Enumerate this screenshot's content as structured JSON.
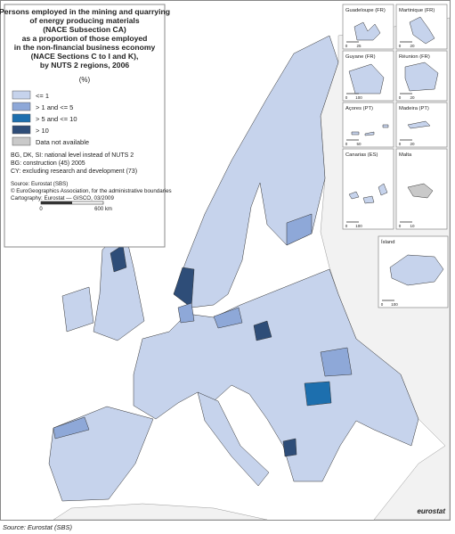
{
  "title_lines": [
    "Persons employed in the mining and quarrying",
    "of energy producing materials",
    "(NACE Subsection CA)",
    "as a proportion of those employed",
    "in the non-financial business economy",
    "(NACE Sections C to I and K),",
    "by NUTS 2 regions, 2006"
  ],
  "unit": "(%)",
  "legend": [
    {
      "label": "<= 1",
      "color": "#c6d3ec"
    },
    {
      "label": "> 1 and <= 5",
      "color": "#8ea8d8"
    },
    {
      "label": "> 5 and <= 10",
      "color": "#1d6fae"
    },
    {
      "label": "> 10",
      "color": "#2e4d78"
    },
    {
      "label": "Data not available",
      "color": "#c9c9c9"
    }
  ],
  "notes": [
    "BG, DK, SI: national level instead of NUTS 2",
    "BG: construction (45) 2005",
    "CY: excluding research and development (73)"
  ],
  "source_lines": [
    "Source: Eurostat (SBS)",
    "© EuroGeographics Association, for the administrative boundaries",
    "Cartography: Eurostat — GISCO, 03/2009"
  ],
  "scale": {
    "start": "0",
    "end": "600 km"
  },
  "insets": [
    {
      "name": "Guadeloupe (FR)",
      "scale": [
        "0",
        "25"
      ]
    },
    {
      "name": "Martinique (FR)",
      "scale": [
        "0",
        "20"
      ]
    },
    {
      "name": "Guyane (FR)",
      "scale": [
        "0",
        "100"
      ]
    },
    {
      "name": "Réunion (FR)",
      "scale": [
        "0",
        "20"
      ]
    },
    {
      "name": "Açores (PT)",
      "scale": [
        "0",
        "50"
      ]
    },
    {
      "name": "Madeira (PT)",
      "scale": [
        "0",
        "20"
      ]
    },
    {
      "name": "Canarias (ES)",
      "scale": [
        "0",
        "100"
      ]
    },
    {
      "name": "Malta",
      "scale": [
        "0",
        "10"
      ]
    },
    {
      "name": "Ísland",
      "scale": [
        "0",
        "100"
      ]
    }
  ],
  "logo": "eurostat",
  "footer": "Source: Eurostat (SBS)"
}
